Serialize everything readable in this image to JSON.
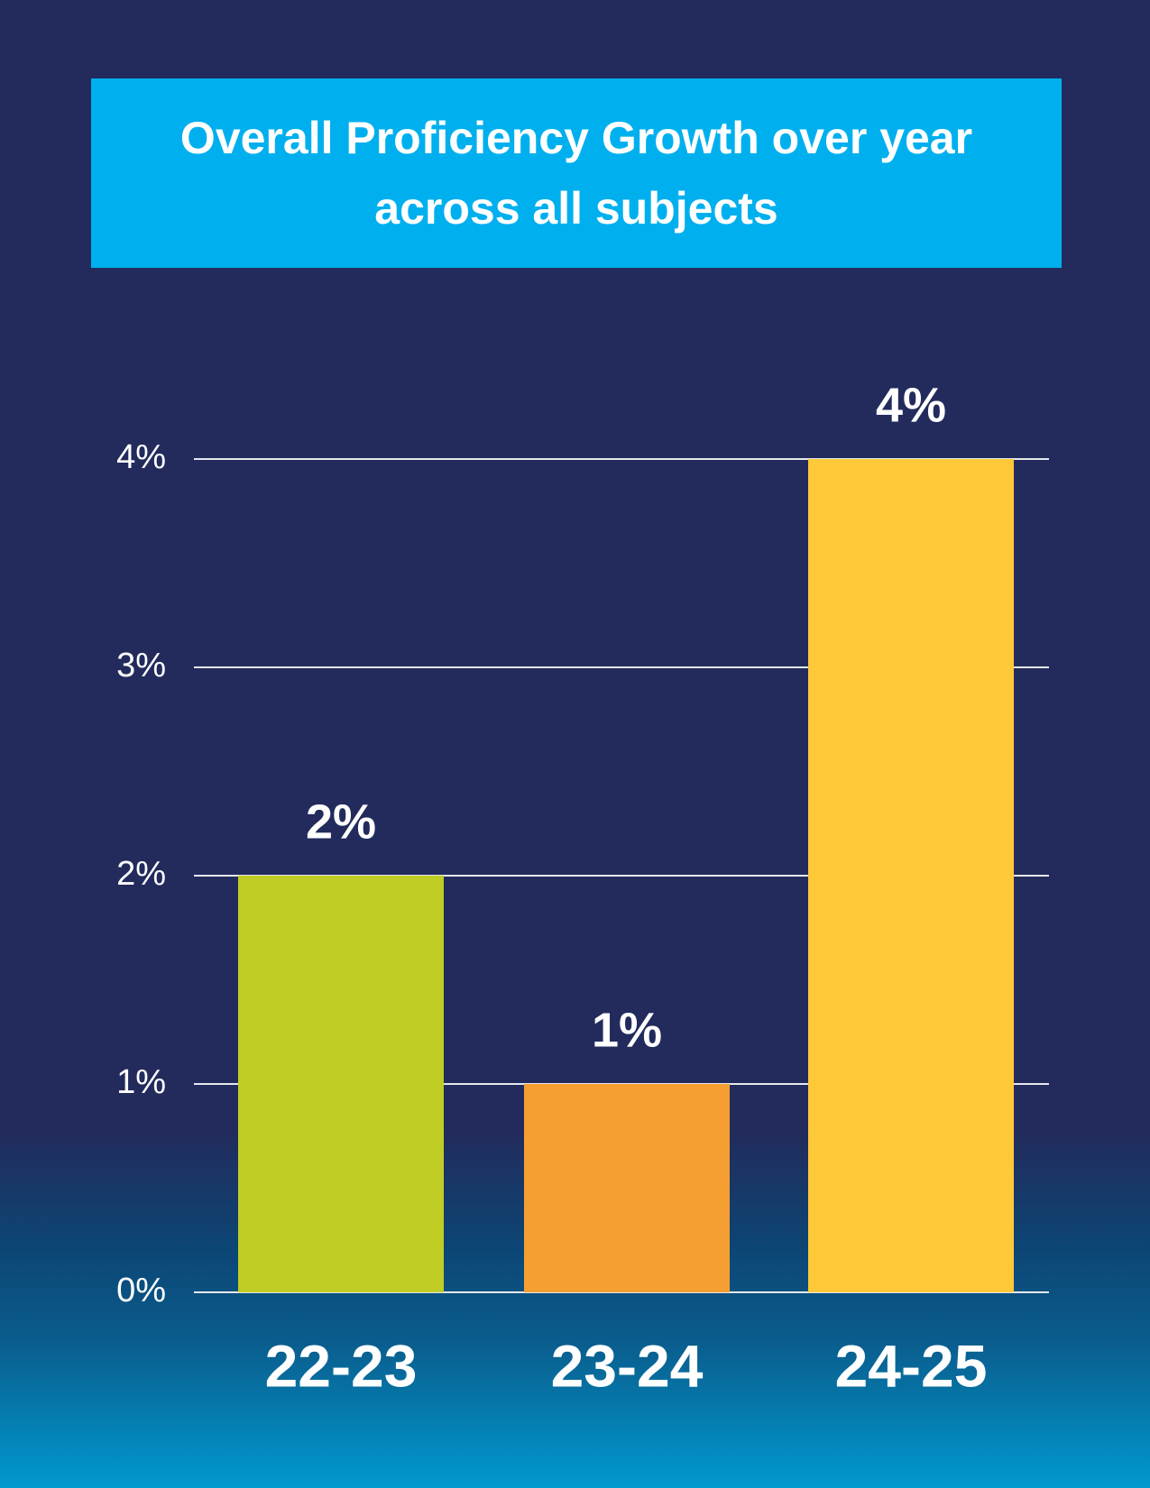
{
  "chart_data": {
    "type": "bar",
    "title": "Overall Proficiency Growth over year across all subjects",
    "categories": [
      "22-23",
      "23-24",
      "24-25"
    ],
    "values": [
      2,
      1,
      4
    ],
    "value_labels": [
      "2%",
      "1%",
      "4%"
    ],
    "colors": [
      "#c0cd24",
      "#f59f33",
      "#fec938"
    ],
    "ylim": [
      0,
      4
    ],
    "yticks": [
      {
        "value": 0,
        "label": "0%"
      },
      {
        "value": 1,
        "label": "1%"
      },
      {
        "value": 2,
        "label": "2%"
      },
      {
        "value": 3,
        "label": "3%"
      },
      {
        "value": 4,
        "label": "4%"
      }
    ],
    "grid": true
  }
}
